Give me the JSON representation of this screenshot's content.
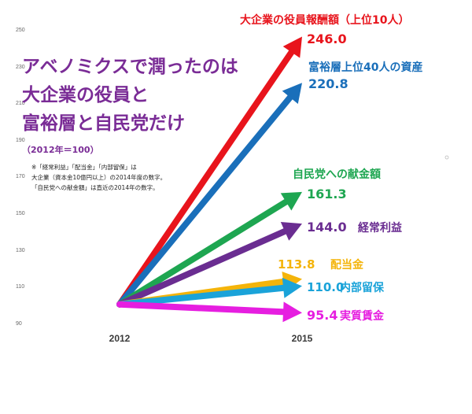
{
  "chart_data": {
    "type": "line",
    "title_lines": [
      "アベノミクスで潤ったのは",
      "大企業の役員と",
      "富裕層と自民党だけ"
    ],
    "subtitle": "（2012年＝100）",
    "notes": [
      "※「経常利益」「配当金」「内部留保」は",
      "大企業（資本金10億円以上）の2014年度の数字。",
      "「自民党への献金額」は直近の2014年の数字。"
    ],
    "x": [
      "2012",
      "2015"
    ],
    "y_ticks": [
      "90",
      "110",
      "130",
      "150",
      "170",
      "190",
      "210",
      "230",
      "250"
    ],
    "ylim": [
      90,
      250
    ],
    "start_value": 100,
    "series": [
      {
        "name": "大企業の役員報酬額（上位10人）",
        "values": [
          100,
          246.0
        ],
        "value_label": "246.0",
        "color": "#e8141c"
      },
      {
        "name": "富裕層上位40人の資産",
        "values": [
          100,
          220.8
        ],
        "value_label": "220.8",
        "color": "#1a6fba"
      },
      {
        "name": "自民党への献金額",
        "values": [
          100,
          161.3
        ],
        "value_label": "161.3",
        "color": "#1ea651"
      },
      {
        "name": "経常利益",
        "values": [
          100,
          144.0
        ],
        "value_label": "144.0",
        "color": "#6a2d91"
      },
      {
        "name": "配当金",
        "values": [
          100,
          113.8
        ],
        "value_label": "113.8",
        "color": "#f4b40a"
      },
      {
        "name": "内部留保",
        "values": [
          100,
          110.0
        ],
        "value_label": "110.0",
        "color": "#1aa3d9"
      },
      {
        "name": "実質賃金",
        "values": [
          100,
          95.4
        ],
        "value_label": "95.4",
        "color": "#e61ee0"
      }
    ]
  }
}
